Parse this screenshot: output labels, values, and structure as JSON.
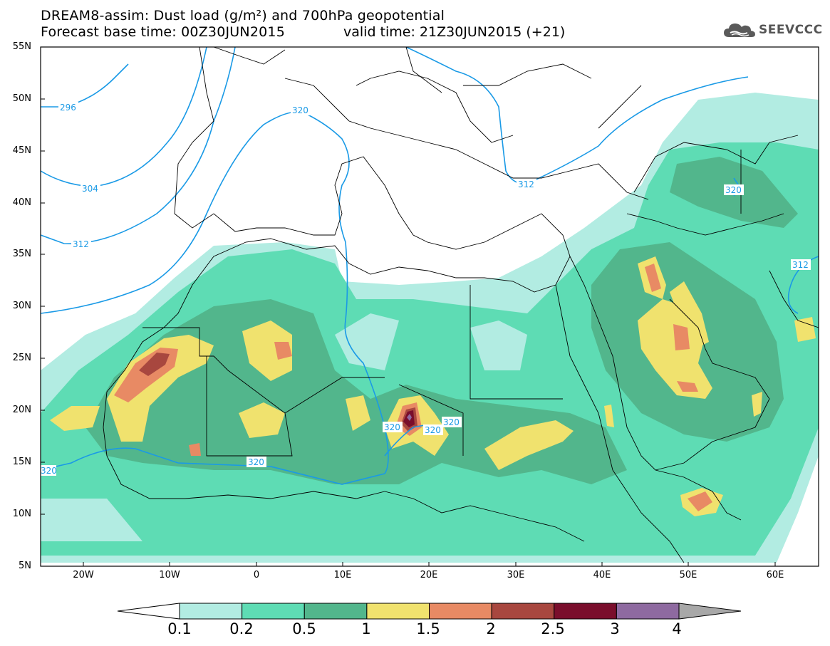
{
  "header": {
    "title_line1": "DREAM8-assim: Dust load (g/m²) and 700hPa geopotential",
    "title_line2_base": "Forecast base time: 00Z30JUN2015",
    "title_line2_valid": "valid time: 21Z30JUN2015 (+21)"
  },
  "logo": {
    "text": "SEEVCCC",
    "icon": "cloud-icon",
    "color": "#555555"
  },
  "map": {
    "lat_labels": [
      "55N",
      "50N",
      "45N",
      "40N",
      "35N",
      "30N",
      "25N",
      "20N",
      "15N",
      "10N",
      "5N"
    ],
    "lon_labels": [
      "20W",
      "10W",
      "0",
      "10E",
      "20E",
      "30E",
      "40E",
      "50E",
      "60E"
    ],
    "contour_labels": [
      "296",
      "304",
      "312",
      "320",
      "320",
      "312",
      "320",
      "320",
      "320",
      "320",
      "320",
      "320",
      "312"
    ]
  },
  "colorbar": {
    "labels": [
      "0.1",
      "0.2",
      "0.5",
      "1",
      "1.5",
      "2",
      "2.5",
      "3",
      "4"
    ],
    "colors": [
      "#ffffff",
      "#b2ece2",
      "#5edcb4",
      "#52b68c",
      "#f0e26e",
      "#e88a64",
      "#a8473f",
      "#7a0e2c",
      "#8e6aa0",
      "#a8a8a8"
    ]
  }
}
